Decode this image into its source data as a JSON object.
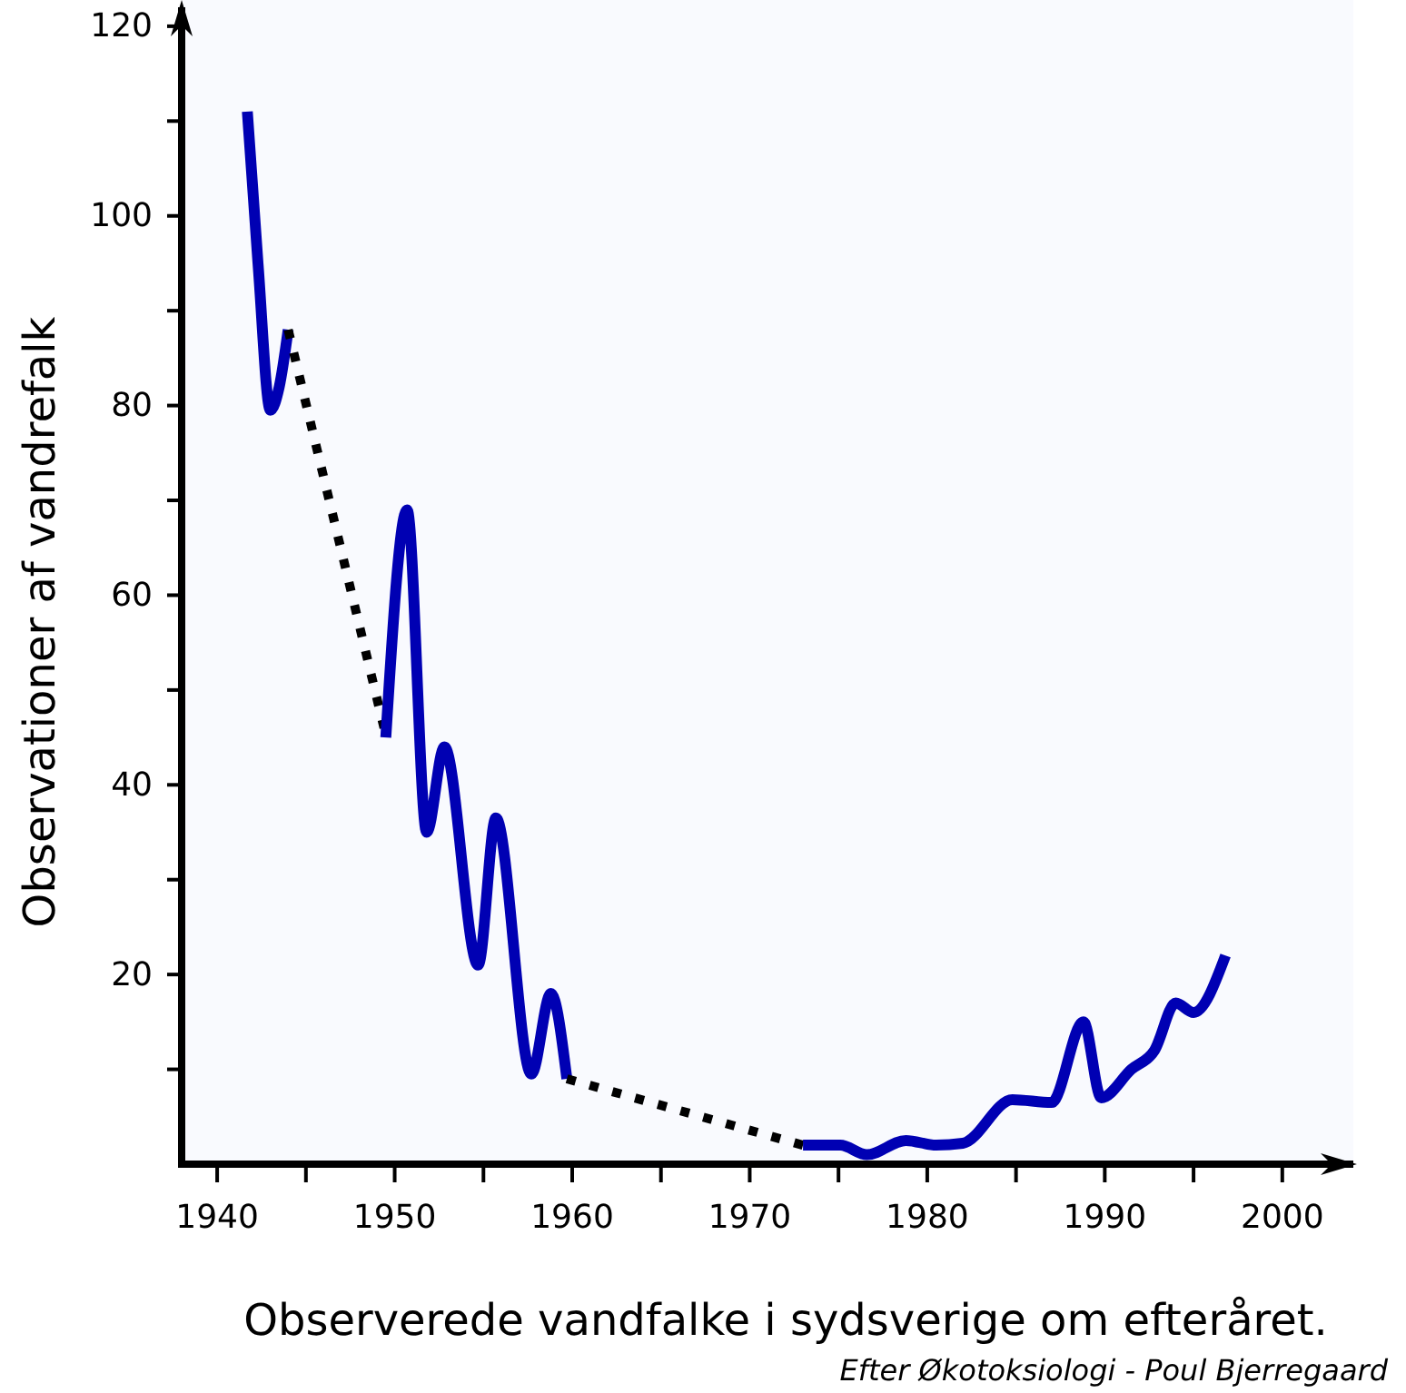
{
  "chart_data": {
    "type": "line",
    "xlabel": "Observerede vandfalke i sydsverige om efteråret.",
    "ylabel": "Observationer af vandrefalk",
    "annotations": [
      "Efter Økotoksiologi - Poul Bjerregaard"
    ],
    "xlim": [
      1938,
      2004
    ],
    "ylim": [
      0,
      122
    ],
    "xticks": [
      1940,
      {
        "value": 1945,
        "label": null
      },
      1950,
      {
        "value": 1955,
        "label": null
      },
      1960,
      {
        "value": 1965,
        "label": null
      },
      1970,
      {
        "value": 1975,
        "label": null
      },
      1980,
      {
        "value": 1985,
        "label": null
      },
      1990,
      {
        "value": 1995,
        "label": null
      },
      2000
    ],
    "yticks": [
      {
        "value": 10,
        "label": null
      },
      20,
      {
        "value": 30,
        "label": null
      },
      40,
      {
        "value": 50,
        "label": null
      },
      60,
      {
        "value": 70,
        "label": null
      },
      80,
      {
        "value": 90,
        "label": null
      },
      100,
      {
        "value": 110,
        "label": null
      },
      120
    ],
    "grid": false,
    "marker": "none",
    "series": [
      {
        "color": "#0000b3",
        "line_style": "solid",
        "x": [
          1941.7,
          1942.3,
          1943,
          1943.5,
          1944
        ],
        "values": [
          111,
          95,
          79.5,
          82,
          88
        ]
      },
      {
        "color": "#000000",
        "line_style": "dotted",
        "x": [
          1944,
          1949.4
        ],
        "values": [
          88,
          46
        ]
      },
      {
        "color": "#0000b3",
        "line_style": "solid",
        "x": [
          1949.5,
          1950.7,
          1951.8,
          1952.8,
          1954.7,
          1955.7,
          1957.7,
          1958.8,
          1959.7
        ],
        "values": [
          45,
          69,
          35,
          44,
          21,
          36.5,
          9.5,
          18,
          9
        ]
      },
      {
        "color": "#000000",
        "line_style": "dotted",
        "x": [
          1959.7,
          1973
        ],
        "values": [
          9,
          2
        ]
      },
      {
        "color": "#0000b3",
        "line_style": "solid",
        "x": [
          1973,
          1975.1,
          1976.6,
          1978.8,
          1980.5,
          1982,
          1984.8,
          1987,
          1988.8,
          1989.8,
          1991.5,
          1992.8,
          1994,
          1995,
          1996.8
        ],
        "values": [
          2,
          2,
          1,
          2.5,
          2,
          2.2,
          6.8,
          6.5,
          15,
          7,
          10,
          12,
          17,
          16,
          22
        ]
      }
    ]
  }
}
